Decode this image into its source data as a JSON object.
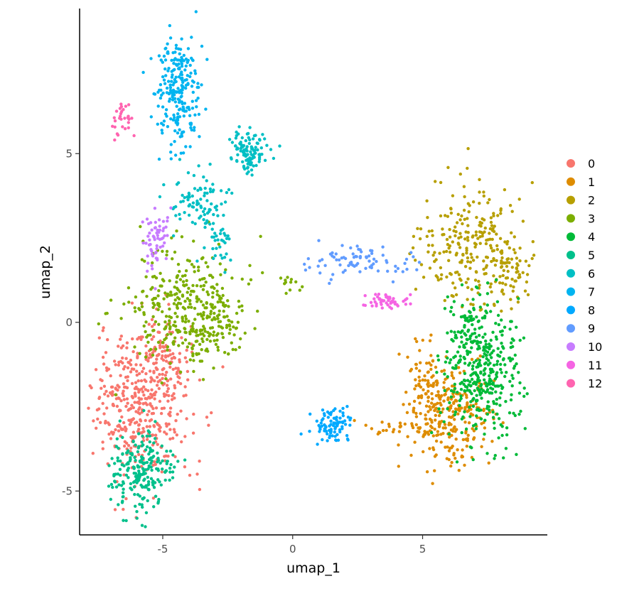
{
  "chart_data": {
    "type": "scatter",
    "title": "",
    "xlabel": "umap_1",
    "ylabel": "umap_2",
    "xlim": [
      -8.2,
      9.8
    ],
    "ylim": [
      -6.3,
      9.3
    ],
    "x_ticks": [
      -5,
      0,
      5
    ],
    "y_ticks": [
      -5,
      0,
      5
    ],
    "grid": false,
    "legend_position": "right",
    "series": [
      {
        "name": "0",
        "color": "#F8766D",
        "clusters": [
          {
            "cx": -5.8,
            "cy": -2.4,
            "sx": 0.9,
            "sy": 1.1,
            "n": 420
          },
          {
            "cx": -5.0,
            "cy": -1.0,
            "sx": 0.5,
            "sy": 0.5,
            "n": 80
          }
        ]
      },
      {
        "name": "1",
        "color": "#DE8C00",
        "clusters": [
          {
            "cx": 6.0,
            "cy": -2.8,
            "sx": 0.8,
            "sy": 0.7,
            "n": 260
          },
          {
            "cx": 5.2,
            "cy": -1.5,
            "sx": 0.4,
            "sy": 0.5,
            "n": 60
          },
          {
            "cx": 3.8,
            "cy": -3.1,
            "sx": 0.6,
            "sy": 0.12,
            "n": 25
          }
        ]
      },
      {
        "name": "2",
        "color": "#B79F00",
        "clusters": [
          {
            "cx": 7.0,
            "cy": 2.2,
            "sx": 1.0,
            "sy": 0.9,
            "n": 260
          },
          {
            "cx": 8.5,
            "cy": 1.5,
            "sx": 0.3,
            "sy": 0.4,
            "n": 40
          }
        ]
      },
      {
        "name": "3",
        "color": "#7CAE00",
        "clusters": [
          {
            "cx": -4.2,
            "cy": 0.5,
            "sx": 1.0,
            "sy": 0.9,
            "n": 300
          },
          {
            "cx": -3.0,
            "cy": -0.2,
            "sx": 0.6,
            "sy": 0.5,
            "n": 90
          },
          {
            "cx": 0.0,
            "cy": 1.1,
            "sx": 0.4,
            "sy": 0.15,
            "n": 12
          }
        ]
      },
      {
        "name": "4",
        "color": "#00BA38",
        "clusters": [
          {
            "cx": 7.3,
            "cy": -1.5,
            "sx": 0.75,
            "sy": 1.0,
            "n": 360
          },
          {
            "cx": 6.8,
            "cy": 0.0,
            "sx": 0.35,
            "sy": 0.5,
            "n": 60
          }
        ]
      },
      {
        "name": "5",
        "color": "#00C08B",
        "clusters": [
          {
            "cx": -5.8,
            "cy": -4.4,
            "sx": 0.55,
            "sy": 0.6,
            "n": 220
          }
        ]
      },
      {
        "name": "6",
        "color": "#00BFC4",
        "clusters": [
          {
            "cx": -1.7,
            "cy": 5.1,
            "sx": 0.35,
            "sy": 0.3,
            "n": 110
          },
          {
            "cx": -3.5,
            "cy": 3.5,
            "sx": 0.5,
            "sy": 0.5,
            "n": 90
          },
          {
            "cx": -2.8,
            "cy": 2.4,
            "sx": 0.3,
            "sy": 0.4,
            "n": 30
          }
        ]
      },
      {
        "name": "7",
        "color": "#00B4F0",
        "clusters": [
          {
            "cx": -4.4,
            "cy": 6.9,
            "sx": 0.4,
            "sy": 0.9,
            "n": 230
          }
        ]
      },
      {
        "name": "8",
        "color": "#00A9FF",
        "clusters": [
          {
            "cx": 1.5,
            "cy": -3.1,
            "sx": 0.35,
            "sy": 0.25,
            "n": 90
          }
        ]
      },
      {
        "name": "9",
        "color": "#619CFF",
        "clusters": [
          {
            "cx": 2.3,
            "cy": 1.8,
            "sx": 1.1,
            "sy": 0.25,
            "n": 80
          }
        ]
      },
      {
        "name": "10",
        "color": "#C77CFF",
        "clusters": [
          {
            "cx": -5.2,
            "cy": 2.4,
            "sx": 0.25,
            "sy": 0.5,
            "n": 60
          }
        ]
      },
      {
        "name": "11",
        "color": "#F564E3",
        "clusters": [
          {
            "cx": 3.6,
            "cy": 0.6,
            "sx": 0.55,
            "sy": 0.12,
            "n": 50
          }
        ]
      },
      {
        "name": "12",
        "color": "#FF64B0",
        "clusters": [
          {
            "cx": -6.5,
            "cy": 6.0,
            "sx": 0.25,
            "sy": 0.5,
            "n": 30
          }
        ]
      }
    ]
  }
}
